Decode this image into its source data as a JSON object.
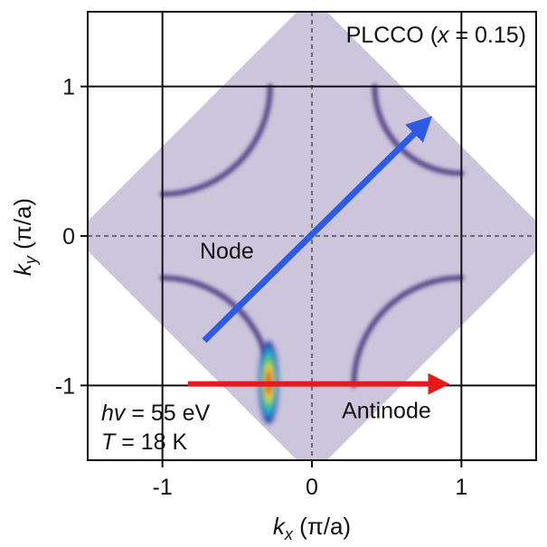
{
  "chart_data": {
    "type": "heatmap",
    "title": "PLCCO (x = 0.15)",
    "title_parts": {
      "prefix": "PLCCO (",
      "var": "x",
      "suffix": " = 0.15)"
    },
    "xlabel": {
      "var": "k",
      "sub": "x",
      "unit": " (π/a)"
    },
    "ylabel": {
      "var": "k",
      "sub": "y",
      "unit": " (π/a)"
    },
    "xlim": [
      -1.5,
      1.5
    ],
    "ylim": [
      -1.5,
      1.5
    ],
    "xticks": [
      -1,
      0,
      1
    ],
    "yticks": [
      1,
      0,
      -1
    ],
    "xtick_labels": [
      "-1",
      "0",
      "1"
    ],
    "ytick_labels": [
      "1",
      "0",
      "-1"
    ],
    "grid": true,
    "conditions": [
      {
        "var": "hv",
        "text": " = 55 eV"
      },
      {
        "var": "T",
        "text": " = 18 K"
      }
    ],
    "map_region": {
      "corners": [
        [
          0,
          1.6
        ],
        [
          1.6,
          0
        ],
        [
          0,
          -1.6
        ],
        [
          -1.6,
          0
        ]
      ]
    },
    "fermi_surface_arcs": [
      {
        "name": "upper-right",
        "center": [
          1,
          1
        ],
        "radius": 0.58,
        "from_deg": 180,
        "to_deg": 270
      },
      {
        "name": "lower-right",
        "center": [
          1,
          -1
        ],
        "radius": 0.72,
        "from_deg": 90,
        "to_deg": 180
      },
      {
        "name": "upper-left",
        "center": [
          -1,
          1
        ],
        "radius": 0.72,
        "from_deg": 270,
        "to_deg": 360
      },
      {
        "name": "lower-left",
        "center": [
          -1,
          -1
        ],
        "radius": 0.72,
        "from_deg": 0,
        "to_deg": 90
      }
    ],
    "hotspot": {
      "kx": -0.29,
      "ky": -0.98
    },
    "arrows": [
      {
        "label": "Node",
        "color": "#2c5be6",
        "from": [
          -0.72,
          -0.7
        ],
        "to": [
          0.72,
          0.72
        ]
      },
      {
        "label": "Antinode",
        "color": "#e8191c",
        "from": [
          -0.83,
          -0.99
        ],
        "to": [
          0.82,
          -0.99
        ]
      }
    ],
    "colors": {
      "map_bg": "#cdc5dc",
      "arc": "#3c2a78",
      "frame": "#111111"
    }
  }
}
